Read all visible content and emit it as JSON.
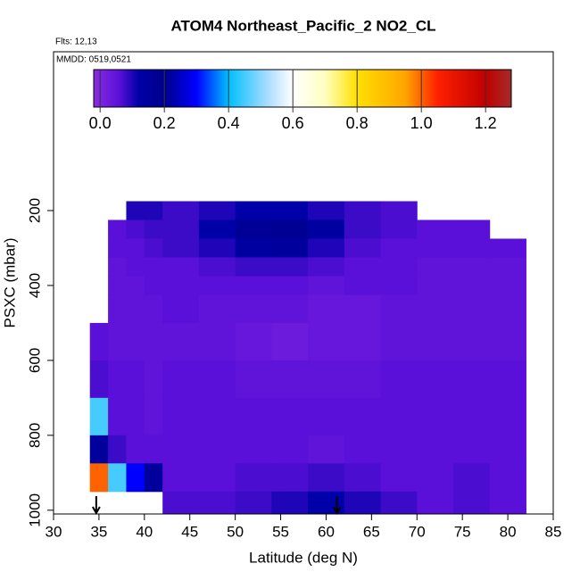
{
  "chart_data": {
    "type": "curtain",
    "title": "ATOM4 Northeast_Pacific_2 NO2_CL",
    "subtitle": "Flts: 12,13",
    "annotation": "MMDD: 0519,0521",
    "xlabel": "Latitude (deg N)",
    "ylabel": "PSXC (mbar)",
    "xlim": [
      30,
      85
    ],
    "xticks": [
      30,
      35,
      40,
      45,
      50,
      55,
      60,
      65,
      70,
      75,
      80,
      85
    ],
    "ylim": [
      1010,
      -224
    ],
    "yticks": [
      200,
      400,
      600,
      800,
      1000
    ],
    "lat_edges": [
      34,
      36,
      38,
      40,
      42,
      46,
      50,
      54,
      58,
      62,
      66,
      70,
      74,
      78,
      82
    ],
    "pressure_edges": [
      175,
      225,
      275,
      325,
      375,
      425,
      500,
      600,
      700,
      800,
      875,
      950,
      1010
    ],
    "values": [
      [
        null,
        null,
        0.1,
        0.1,
        0.08,
        0.1,
        0.12,
        0.12,
        0.1,
        0.08,
        0.07,
        null,
        null,
        null
      ],
      [
        null,
        0.06,
        0.07,
        0.08,
        0.08,
        0.12,
        0.17,
        0.18,
        0.14,
        0.08,
        0.07,
        0.06,
        0.06,
        null
      ],
      [
        null,
        0.06,
        0.06,
        0.07,
        0.08,
        0.1,
        0.14,
        0.15,
        0.1,
        0.07,
        0.06,
        0.06,
        0.06,
        0.06
      ],
      [
        null,
        0.05,
        0.06,
        0.06,
        0.06,
        0.07,
        0.08,
        0.08,
        0.07,
        0.06,
        0.06,
        0.05,
        0.05,
        0.05
      ],
      [
        null,
        0.05,
        0.05,
        0.06,
        0.06,
        0.06,
        0.06,
        0.06,
        0.05,
        0.06,
        0.06,
        0.05,
        0.05,
        0.05
      ],
      [
        null,
        0.05,
        0.05,
        0.05,
        0.06,
        0.05,
        0.05,
        0.05,
        0.04,
        0.04,
        0.05,
        0.05,
        0.05,
        0.05
      ],
      [
        0.06,
        0.05,
        0.05,
        0.05,
        0.05,
        0.05,
        0.04,
        0.03,
        0.04,
        0.04,
        0.05,
        0.05,
        0.05,
        0.05
      ],
      [
        0.07,
        0.06,
        0.06,
        0.05,
        0.06,
        0.06,
        0.05,
        0.05,
        0.05,
        0.05,
        0.06,
        0.06,
        0.06,
        0.06
      ],
      [
        0.45,
        0.06,
        0.06,
        0.05,
        0.06,
        0.06,
        0.06,
        0.06,
        0.06,
        0.06,
        0.06,
        0.06,
        0.06,
        0.06
      ],
      [
        0.15,
        0.08,
        0.06,
        0.06,
        0.06,
        0.06,
        0.06,
        0.06,
        0.05,
        0.06,
        0.06,
        0.06,
        0.06,
        0.06
      ],
      [
        1.0,
        0.45,
        0.3,
        0.15,
        0.06,
        0.06,
        0.07,
        0.07,
        0.08,
        0.07,
        0.06,
        0.06,
        0.07,
        0.06
      ],
      [
        null,
        null,
        null,
        null,
        0.07,
        0.07,
        0.08,
        0.1,
        0.12,
        0.1,
        0.08,
        0.06,
        0.07,
        0.06
      ]
    ],
    "colorbar_lim": [
      -0.02,
      1.28
    ],
    "colorbar_ticks": [
      {
        "value": 0,
        "label": "0.0"
      },
      0.2,
      0.4,
      0.6,
      0.8,
      {
        "value": 1,
        "label": "1.0"
      },
      1.2
    ],
    "colorscale": [
      [
        -0.02,
        "#8a2be2"
      ],
      [
        0.06,
        "#5a10d8"
      ],
      [
        0.12,
        "#0000a8"
      ],
      [
        0.2,
        "#00008b"
      ],
      [
        0.3,
        "#0000ff"
      ],
      [
        0.4,
        "#00bfff"
      ],
      [
        0.52,
        "#a8dcff"
      ],
      [
        0.6,
        "#ffffff"
      ],
      [
        0.7,
        "#ffffc0"
      ],
      [
        0.8,
        "#ffe000"
      ],
      [
        0.95,
        "#ffa500"
      ],
      [
        1.05,
        "#ff2000"
      ],
      [
        1.2,
        "#c00000"
      ],
      [
        1.28,
        "#a52a2a"
      ]
    ],
    "arrows": [
      34.7,
      61.2
    ]
  }
}
